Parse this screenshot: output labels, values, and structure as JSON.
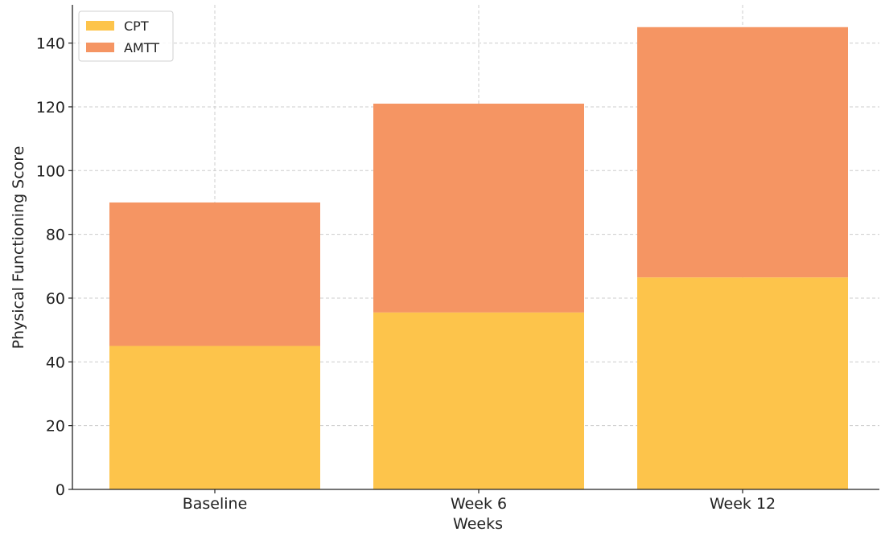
{
  "chart_data": {
    "type": "bar",
    "stacked": true,
    "categories": [
      "Baseline",
      "Week 6",
      "Week 12"
    ],
    "series": [
      {
        "name": "CPT",
        "values": [
          45,
          55.5,
          66.5
        ],
        "color": "#FDC44B"
      },
      {
        "name": "AMTT",
        "values": [
          45,
          65.5,
          78.5
        ],
        "color": "#F59563"
      }
    ],
    "xlabel": "Weeks",
    "ylabel": "Physical Functioning Score",
    "ylim": [
      0,
      152
    ],
    "yticks": [
      0,
      20,
      40,
      60,
      80,
      100,
      120,
      140
    ],
    "grid": true,
    "legend_position": "top-left",
    "colors": {
      "axis": "#222222",
      "grid": "#cccccc",
      "background": "#ffffff"
    }
  }
}
